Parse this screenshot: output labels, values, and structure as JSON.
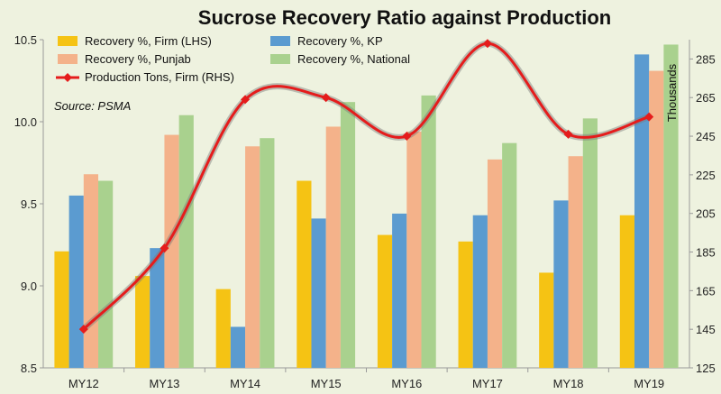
{
  "chart_data": {
    "type": "bar",
    "title": "Sucrose Recovery Ratio against Production",
    "source": "Source: PSMA",
    "categories": [
      "MY12",
      "MY13",
      "MY14",
      "MY15",
      "MY16",
      "MY17",
      "MY18",
      "MY19"
    ],
    "left_axis": {
      "ylim": [
        8.5,
        10.5
      ],
      "ticks": [
        "8.5",
        "9.0",
        "9.5",
        "10.0",
        "10.5"
      ]
    },
    "right_axis": {
      "label": "Thousands",
      "ylim": [
        125,
        295
      ],
      "ticks": [
        "125",
        "145",
        "165",
        "185",
        "205",
        "225",
        "245",
        "265",
        "285"
      ]
    },
    "series": [
      {
        "name": "Recovery %, Firm (LHS)",
        "axis": "left",
        "type": "bar",
        "color": "#f5c314",
        "values": [
          9.21,
          9.06,
          8.98,
          9.64,
          9.31,
          9.27,
          9.08,
          9.43
        ]
      },
      {
        "name": "Recovery %, KP",
        "axis": "left",
        "type": "bar",
        "color": "#5b9bd0",
        "values": [
          9.55,
          9.23,
          8.75,
          9.41,
          9.44,
          9.43,
          9.52,
          10.41
        ]
      },
      {
        "name": "Recovery %, Punjab",
        "axis": "left",
        "type": "bar",
        "color": "#f4b28a",
        "values": [
          9.68,
          9.92,
          9.85,
          9.97,
          9.94,
          9.77,
          9.79,
          10.31
        ]
      },
      {
        "name": "Recovery %, National",
        "axis": "left",
        "type": "bar",
        "color": "#a9d18e",
        "values": [
          9.64,
          10.04,
          9.9,
          10.12,
          10.16,
          9.87,
          10.02,
          10.47
        ]
      },
      {
        "name": "Production Tons, Firm (RHS)",
        "axis": "right",
        "type": "line",
        "color": "#e51c1c",
        "values": [
          145,
          187,
          264,
          265,
          245,
          293,
          246,
          255
        ]
      }
    ],
    "legend": [
      {
        "label": "Recovery %, Firm (LHS)",
        "color": "#f5c314",
        "kind": "patch"
      },
      {
        "label": "Recovery %, KP",
        "color": "#5b9bd0",
        "kind": "patch"
      },
      {
        "label": "Recovery %, Punjab",
        "color": "#f4b28a",
        "kind": "patch"
      },
      {
        "label": "Recovery %, National",
        "color": "#a9d18e",
        "kind": "patch"
      },
      {
        "label": "Production Tons, Firm (RHS)",
        "color": "#e51c1c",
        "kind": "line"
      }
    ]
  }
}
